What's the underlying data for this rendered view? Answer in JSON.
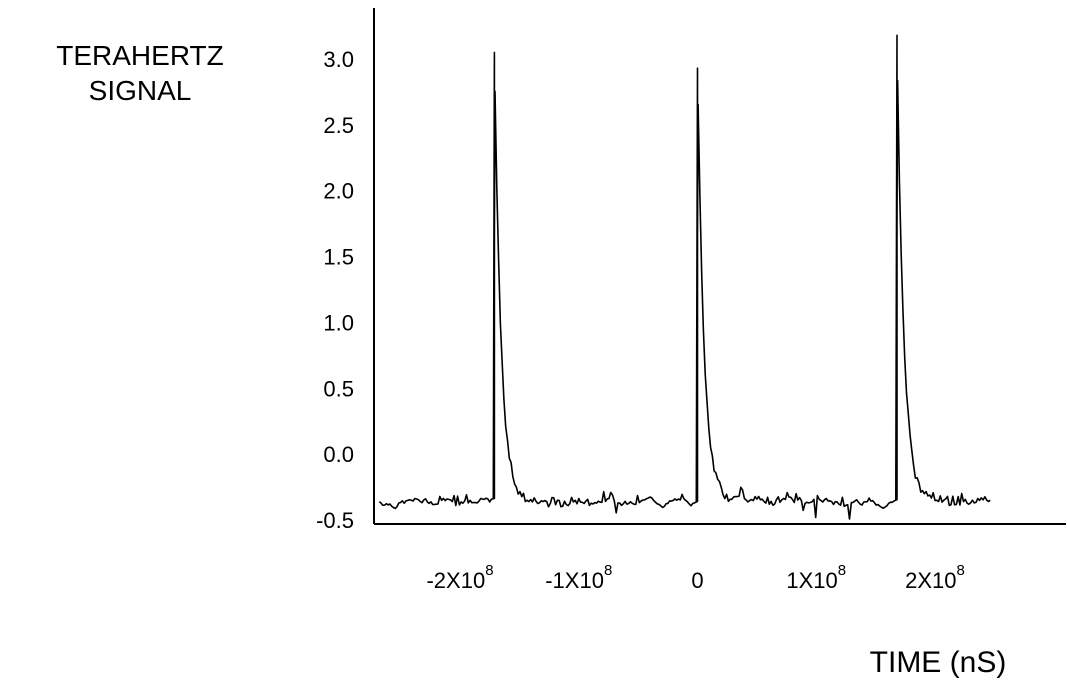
{
  "chart_data": {
    "type": "line",
    "title": "",
    "ylabel_lines": [
      "TERAHERTZ",
      "SIGNAL"
    ],
    "xlabel": "TIME (nS)",
    "ylim": [
      -0.5,
      3.3
    ],
    "xlim": [
      -250000000.0,
      250000000.0
    ],
    "y_ticks": [
      "3.0",
      "2.5",
      "2.0",
      "1.5",
      "1.0",
      "0.5",
      "0.0",
      "-0.5"
    ],
    "y_tick_values": [
      3.0,
      2.5,
      2.0,
      1.5,
      1.0,
      0.5,
      0.0,
      -0.5
    ],
    "x_ticks": [
      {
        "base": "-2X10",
        "exp": "8",
        "value": -200000000.0
      },
      {
        "base": "-1X10",
        "exp": "8",
        "value": -100000000.0
      },
      {
        "base": "0",
        "exp": "",
        "value": 0
      },
      {
        "base": "1X10",
        "exp": "8",
        "value": 100000000.0
      },
      {
        "base": "2X10",
        "exp": "8",
        "value": 200000000.0
      }
    ],
    "grid": false,
    "series": [
      {
        "baseline": -0.36,
        "pulses": [
          {
            "x": -171000000.0,
            "peak": 3.05
          },
          {
            "x": 0.0,
            "peak": 2.93
          },
          {
            "x": 168000000.0,
            "peak": 3.18
          }
        ]
      }
    ],
    "line_color": "#000000"
  }
}
